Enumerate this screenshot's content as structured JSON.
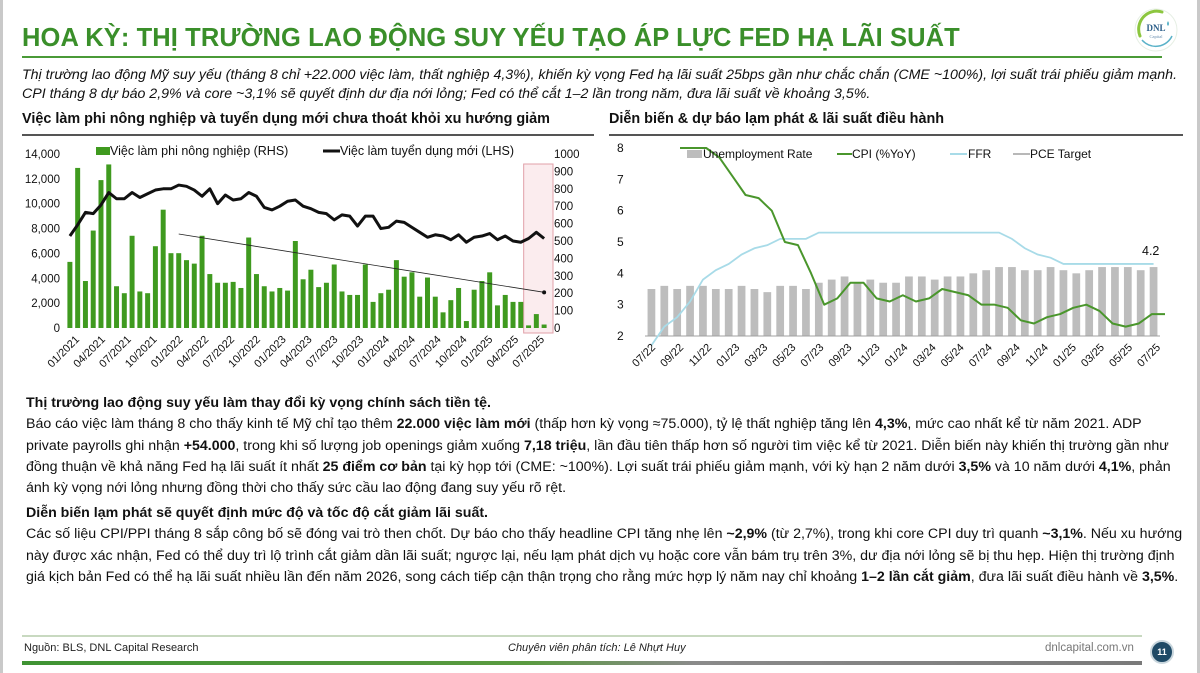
{
  "header": {
    "title": "HOA KỲ: THỊ TRƯỜNG LAO ĐỘNG SUY YẾU TẠO ÁP LỰC FED HẠ LÃI SUẤT",
    "logo_text": "DNL",
    "logo_subtext": "Capital",
    "summary": "Thị trường lao động Mỹ suy yếu (tháng 8 chỉ +22.000 việc làm, thất nghiệp 4,3%), khiến kỳ vọng Fed hạ lãi suất 25bps gần như chắc chắn (CME ~100%), lợi suất trái phiếu giảm mạnh. CPI tháng 8 dự báo 2,9% và core ~3,1% sẽ quyết định dư địa nới lỏng; Fed có thể cắt 1–2 lần trong năm, đưa lãi suất về khoảng 3,5%."
  },
  "colors": {
    "brand_green": "#3a8f2a",
    "bar_green": "#3f9a1f",
    "line_black": "#111111",
    "highlight_box": "#e0a0a8",
    "highlight_fill": "#fbecee",
    "unemployment_gray": "#bdbdbd",
    "cpi_green": "#4a962c",
    "ffr_blue": "#a8dbe8",
    "pce_gray": "#a0a0a0",
    "page_badge": "#1f4a66"
  },
  "chart_data": [
    {
      "type": "bar+line",
      "title": "Việc làm phi nông nghiệp và tuyển dụng mới chưa thoát khỏi xu hướng giảm",
      "legend": [
        "Việc làm phi nông nghiệp (RHS)",
        "Việc làm tuyển dụng mới (LHS)"
      ],
      "left_axis": {
        "ticks": [
          "14,000",
          "12,000",
          "10,000",
          "8,000",
          "6,000",
          "4,000",
          "2,000",
          "0"
        ],
        "range": [
          0,
          14000
        ]
      },
      "right_axis": {
        "ticks": [
          "1000",
          "900",
          "800",
          "700",
          "600",
          "500",
          "400",
          "300",
          "200",
          "100",
          "0"
        ],
        "range": [
          0,
          1000
        ]
      },
      "x_tick_labels": [
        "01/2021",
        "04/2021",
        "07/2021",
        "10/2021",
        "01/2022",
        "04/2022",
        "07/2022",
        "10/2022",
        "01/2023",
        "04/2023",
        "07/2023",
        "10/2023",
        "01/2024",
        "04/2024",
        "07/2024",
        "10/2024",
        "01/2025",
        "04/2025",
        "07/2025"
      ],
      "series": [
        {
          "name": "Việc làm phi nông nghiệp (RHS)",
          "kind": "bar",
          "axis": "right",
          "values": [
            380,
            920,
            270,
            560,
            850,
            940,
            240,
            200,
            530,
            210,
            200,
            470,
            680,
            430,
            430,
            390,
            370,
            530,
            310,
            260,
            260,
            265,
            230,
            520,
            310,
            240,
            210,
            230,
            215,
            500,
            280,
            335,
            235,
            260,
            365,
            210,
            190,
            190,
            365,
            150,
            200,
            220,
            390,
            295,
            320,
            180,
            290,
            180,
            90,
            160,
            230,
            40,
            220,
            270,
            320,
            130,
            190,
            150,
            150,
            15,
            80,
            20
          ],
          "highlighted_last_n": 3
        },
        {
          "name": "Việc làm tuyển dụng mới (LHS)",
          "kind": "line",
          "axis": "left",
          "values": [
            7400,
            8300,
            9300,
            9200,
            9900,
            10900,
            10400,
            10400,
            10900,
            10500,
            10800,
            11100,
            11200,
            11200,
            11500,
            11400,
            11100,
            10600,
            11200,
            10000,
            10700,
            10300,
            10400,
            10900,
            10600,
            9700,
            9500,
            9800,
            10200,
            10300,
            9800,
            9600,
            9300,
            9200,
            8700,
            9100,
            9000,
            8200,
            9000,
            9000,
            8000,
            8100,
            8600,
            8500,
            8100,
            7700,
            7300,
            7500,
            7400,
            7100,
            7500,
            6900,
            7300,
            7400,
            7600,
            7100,
            7400,
            7000,
            6900,
            7200,
            7700,
            7200
          ]
        }
      ],
      "annotations": [
        "Downward trend arrow from 2022 peak to 07/2025",
        "Highlight box over last 3 months of 2025"
      ]
    },
    {
      "type": "bar+line",
      "title": "Diễn biến & dự báo lạm phát & lãi suất điều hành",
      "legend": [
        "Unemployment Rate",
        "CPI (%YoY)",
        "FFR",
        "PCE Target"
      ],
      "y_axis": {
        "ticks": [
          "8",
          "7",
          "6",
          "5",
          "4",
          "3",
          "2"
        ],
        "range": [
          2,
          8
        ]
      },
      "x_tick_labels": [
        "07/22",
        "09/22",
        "11/22",
        "01/23",
        "03/23",
        "05/23",
        "07/23",
        "09/23",
        "11/23",
        "01/24",
        "03/24",
        "05/24",
        "07/24",
        "09/24",
        "11/24",
        "01/25",
        "03/25",
        "05/25",
        "07/25"
      ],
      "series": [
        {
          "name": "Unemployment Rate",
          "kind": "bar",
          "values": [
            3.5,
            3.6,
            3.5,
            3.6,
            3.6,
            3.5,
            3.5,
            3.6,
            3.5,
            3.4,
            3.6,
            3.6,
            3.5,
            3.7,
            3.8,
            3.9,
            3.7,
            3.8,
            3.7,
            3.7,
            3.9,
            3.9,
            3.8,
            3.9,
            3.9,
            4.0,
            4.1,
            4.2,
            4.2,
            4.1,
            4.1,
            4.2,
            4.1,
            4.0,
            4.1,
            4.2,
            4.2,
            4.2,
            4.1,
            4.2
          ]
        },
        {
          "name": "CPI (%YoY)",
          "kind": "line",
          "values": [
            8.5,
            8.3,
            8.2,
            7.7,
            7.1,
            6.5,
            6.4,
            6.0,
            5.0,
            4.9,
            4.0,
            3.0,
            3.2,
            3.7,
            3.7,
            3.2,
            3.1,
            3.3,
            3.1,
            3.2,
            3.5,
            3.4,
            3.3,
            3.0,
            3.0,
            2.9,
            2.5,
            2.4,
            2.6,
            2.7,
            2.9,
            3.0,
            2.8,
            2.4,
            2.3,
            2.4,
            2.7,
            2.7
          ]
        },
        {
          "name": "FFR",
          "kind": "line",
          "values": [
            1.7,
            2.3,
            2.6,
            3.1,
            3.8,
            4.1,
            4.3,
            4.6,
            4.8,
            4.9,
            5.1,
            5.1,
            5.1,
            5.3,
            5.3,
            5.3,
            5.3,
            5.3,
            5.3,
            5.3,
            5.3,
            5.3,
            5.3,
            5.3,
            5.3,
            5.3,
            5.3,
            5.3,
            5.1,
            4.8,
            4.6,
            4.5,
            4.3,
            4.3,
            4.3,
            4.3,
            4.3,
            4.3,
            4.3,
            4.3
          ]
        },
        {
          "name": "PCE Target",
          "kind": "line",
          "values": [
            2,
            2,
            2,
            2,
            2,
            2,
            2,
            2,
            2,
            2,
            2,
            2,
            2,
            2,
            2,
            2,
            2,
            2,
            2,
            2,
            2,
            2,
            2,
            2,
            2,
            2,
            2,
            2,
            2,
            2,
            2,
            2,
            2,
            2,
            2,
            2,
            2,
            2,
            2,
            2
          ]
        }
      ],
      "data_labels": [
        {
          "series": "Unemployment Rate",
          "point": "07/25",
          "text": "4.2"
        }
      ]
    }
  ],
  "body": {
    "section1": {
      "heading": "Thị trường lao động suy yếu làm thay đổi kỳ vọng chính sách tiền tệ.",
      "p_a": "Báo cáo việc làm tháng 8 cho thấy kinh tế Mỹ chỉ tạo thêm ",
      "b_a": "22.000 việc làm mới",
      "p_b": " (thấp hơn kỳ vọng ≈75.000), tỷ lệ thất nghiệp tăng lên ",
      "b_b": "4,3%",
      "p_c": ", mức cao nhất kể từ năm 2021. ADP private payrolls ghi nhận ",
      "b_c": "+54.000",
      "p_d": ", trong khi số lượng job openings giảm xuống ",
      "b_d": "7,18 triệu",
      "p_e": ", lần đầu tiên thấp hơn số người tìm việc kể từ 2021. Diễn biến này khiến thị trường gần như đồng thuận về khả năng Fed hạ lãi suất ít nhất ",
      "b_e": "25 điểm cơ bản",
      "p_f": " tại kỳ họp tới (CME: ~100%). Lợi suất trái phiếu giảm mạnh, với kỳ hạn 2 năm dưới ",
      "b_f": "3,5%",
      "p_g": " và 10 năm dưới ",
      "b_g": "4,1%",
      "p_h": ", phản ánh kỳ vọng nới lỏng nhưng đồng thời cho thấy sức cầu lao động đang suy yếu rõ rệt."
    },
    "section2": {
      "heading": "Diễn biến lạm phát sẽ quyết định mức độ và tốc độ cắt giảm lãi suất.",
      "p_a": "Các số liệu CPI/PPI tháng 8 sắp công bố sẽ đóng vai trò then chốt. Dự báo cho thấy headline CPI tăng nhẹ lên ",
      "b_a": "~2,9%",
      "p_b": " (từ 2,7%), trong khi core CPI duy trì quanh ",
      "b_b": "~3,1%",
      "p_c": ". Nếu xu hướng này được xác nhận, Fed có thể duy trì lộ trình cắt giảm dần lãi suất; ngược lại, nếu lạm phát dịch vụ hoặc core vẫn bám trụ trên 3%, dư địa nới lỏng sẽ bị thu hẹp. Hiện thị trường định giá kịch bản Fed có thể hạ lãi suất nhiều lần đến năm 2026, song cách tiếp cận thận trọng cho rằng mức hợp lý năm nay chỉ khoảng ",
      "b_c": "1–2 lần cắt giảm",
      "p_d": ", đưa lãi suất điều hành về ",
      "b_d": "3,5%",
      "p_e": "."
    }
  },
  "footer": {
    "source": "Nguồn: BLS, DNL Capital Research",
    "analyst": "Chuyên viên phân tích: Lê Nhựt Huy",
    "website": "dnlcapital.com.vn",
    "page_number": "11"
  }
}
